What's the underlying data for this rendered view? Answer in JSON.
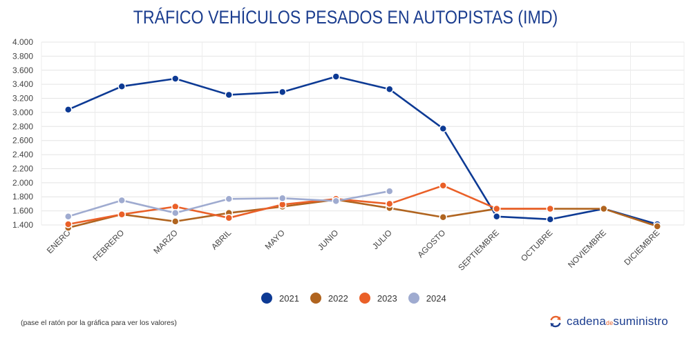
{
  "title": "TRÁFICO VEHÍCULOS PESADOS EN AUTOPISTAS (IMD)",
  "note": "(pase el ratón por la gráfica para ver los valores)",
  "brand": {
    "part1": "cadena",
    "part2": "de",
    "part3": "suministro",
    "icon": "refresh-arrows-icon"
  },
  "chart_data": {
    "type": "line",
    "title": "TRÁFICO VEHÍCULOS PESADOS EN AUTOPISTAS (IMD)",
    "xlabel": "",
    "ylabel": "",
    "categories": [
      "ENERO",
      "FEBRERO",
      "MARZO",
      "ABRIL",
      "MAYO",
      "JUNIO",
      "JULIO",
      "AGOSTO",
      "SEPTIEMBRE",
      "OCTUBRE",
      "NOVIEMBRE",
      "DICIEMBRE"
    ],
    "ylim": [
      1400,
      4000
    ],
    "yticks": [
      1400,
      1600,
      1800,
      2000,
      2200,
      2400,
      2600,
      2800,
      3000,
      3200,
      3400,
      3600,
      3800,
      4000
    ],
    "ytick_labels": [
      "1.400",
      "1.600",
      "1.800",
      "2.000",
      "2.200",
      "2.400",
      "2.600",
      "2.800",
      "3.000",
      "3.200",
      "3.400",
      "3.600",
      "3.800",
      "4.000"
    ],
    "grid": true,
    "legend_position": "bottom",
    "series": [
      {
        "name": "2021",
        "color": "#0d3a94",
        "values": [
          3040,
          3370,
          3480,
          3250,
          3290,
          3510,
          3330,
          2770,
          1520,
          1480,
          1630,
          1410
        ]
      },
      {
        "name": "2022",
        "color": "#b0641f",
        "values": [
          1360,
          1550,
          1450,
          1570,
          1660,
          1760,
          1640,
          1510,
          1630,
          1630,
          1630,
          1380
        ]
      },
      {
        "name": "2023",
        "color": "#ea6028",
        "values": [
          1410,
          1550,
          1660,
          1500,
          1690,
          1770,
          1700,
          1960,
          1630,
          1630,
          null,
          null
        ]
      },
      {
        "name": "2024",
        "color": "#9fabd0",
        "values": [
          1520,
          1750,
          1570,
          1770,
          1780,
          1740,
          1880,
          null,
          null,
          null,
          null,
          null
        ]
      }
    ]
  }
}
